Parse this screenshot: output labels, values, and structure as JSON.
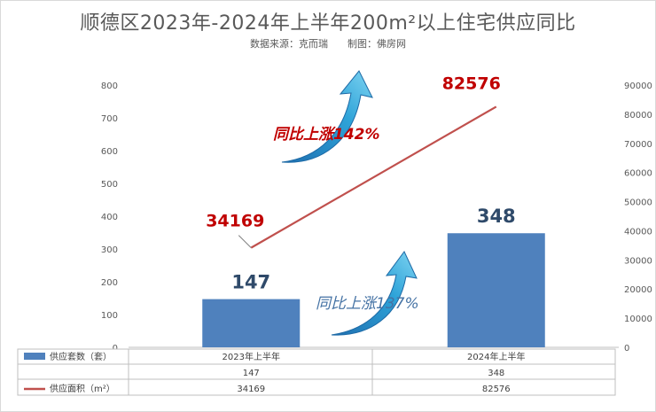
{
  "title": "顺德区2023年-2024年上半年200m²以上住宅供应同比",
  "subtitle": "数据来源：克而瑞　　制图：佛房网",
  "annotations": {
    "area_growth": "同比上涨142%",
    "units_growth": "同比上涨137%"
  },
  "colors": {
    "bar": "#4f81bd",
    "line": "#c0504d",
    "label_red": "#c00000",
    "label_blue": "#2f4a6a",
    "arrow": "#2e9fd8"
  },
  "chart_data": {
    "type": "bar",
    "categories": [
      "2023年上半年",
      "2024年上半年"
    ],
    "series": [
      {
        "name": "供应套数（套）",
        "type": "bar",
        "axis": "left",
        "values": [
          147,
          348
        ]
      },
      {
        "name": "供应面积（m²）",
        "type": "line",
        "axis": "right",
        "values": [
          34169,
          82576
        ]
      }
    ],
    "y_left": {
      "min": 0,
      "max": 800,
      "step": 100
    },
    "y_right": {
      "min": 0,
      "max": 90000,
      "step": 10000
    },
    "legend": "data-table-bottom",
    "grid": false
  }
}
